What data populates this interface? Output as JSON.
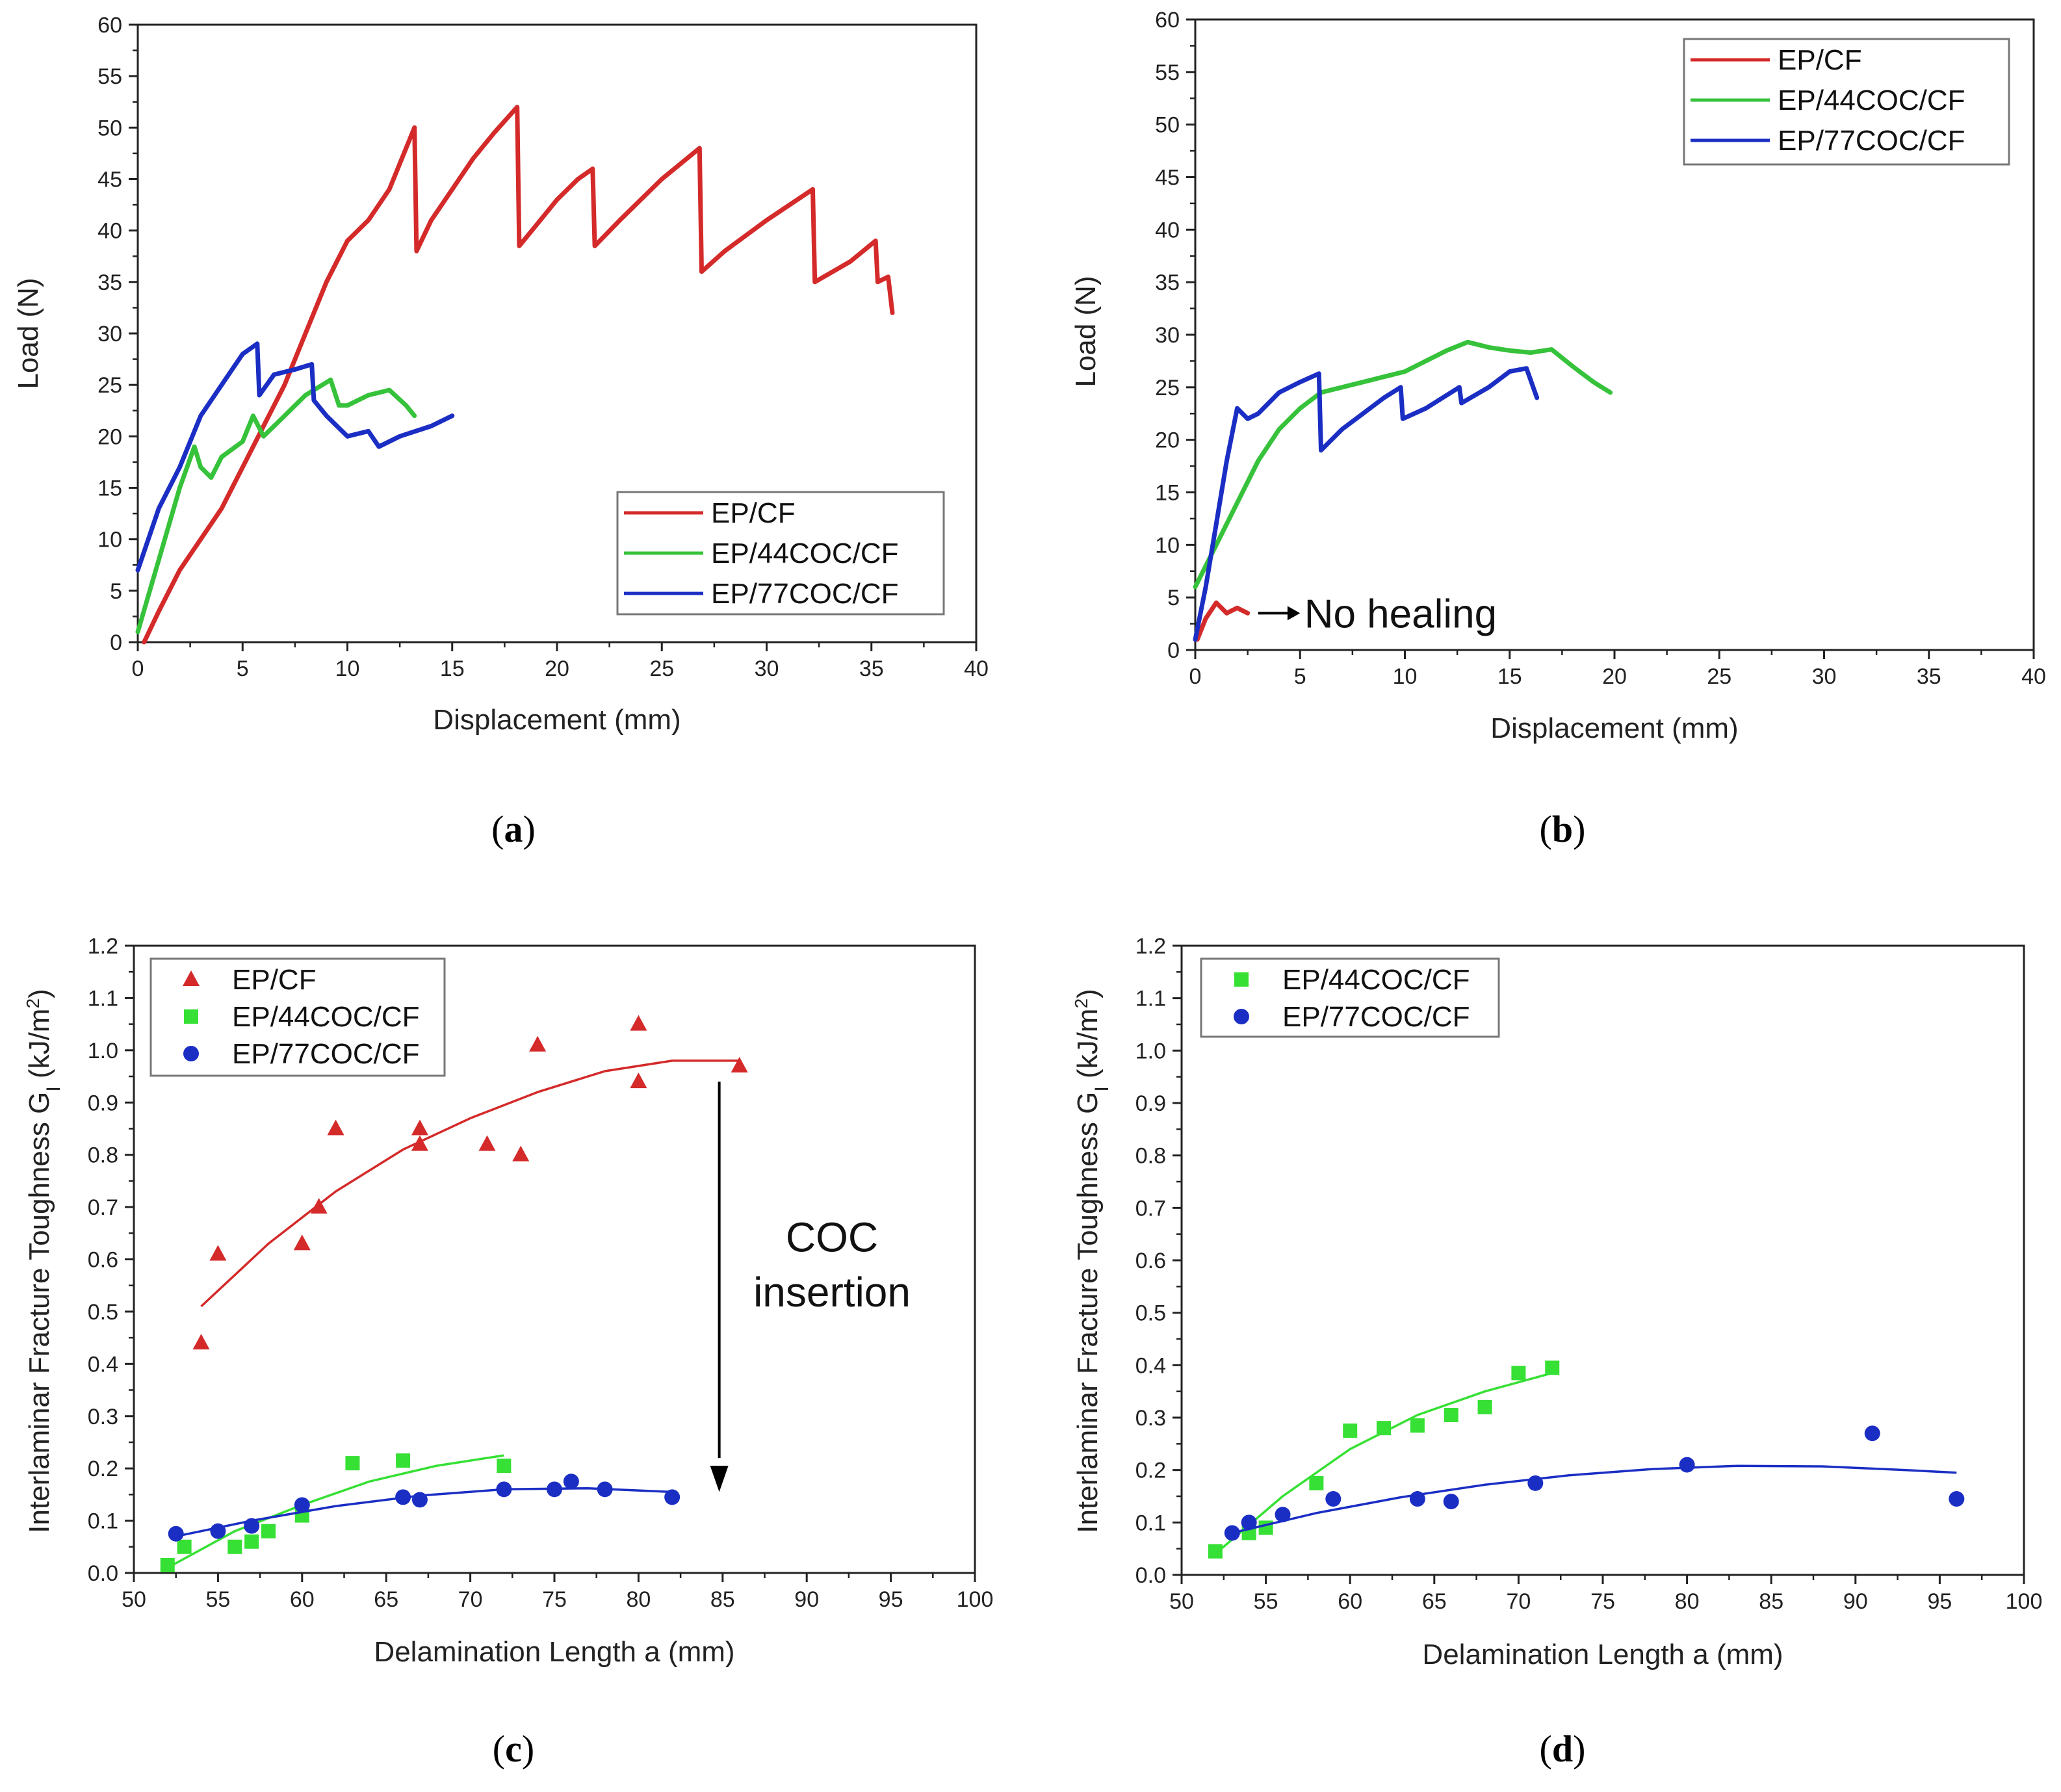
{
  "chart_data": [
    {
      "panel": "(a)",
      "panel_letter": "a",
      "type": "line",
      "xlabel": "Displacement (mm)",
      "ylabel": "Load (N)",
      "xlim": [
        0,
        40
      ],
      "ylim": [
        0,
        60
      ],
      "xticks": [
        0,
        5,
        10,
        15,
        20,
        25,
        30,
        35,
        40
      ],
      "yticks": [
        0,
        5,
        10,
        15,
        20,
        25,
        30,
        35,
        40,
        45,
        50,
        55,
        60
      ],
      "legend_position": "bottom-right",
      "series": [
        {
          "name": "EP/CF",
          "color": "#d42a2a",
          "x": [
            0.3,
            1,
            2,
            3,
            4,
            5,
            6,
            7,
            8,
            9,
            10,
            10.5,
            11,
            12,
            13.2,
            13.3,
            14,
            15,
            16,
            17,
            18.1,
            18.2,
            19,
            20,
            21,
            21.7,
            21.8,
            23,
            25,
            26.8,
            26.9,
            28,
            30,
            32.2,
            32.3,
            34,
            35.2,
            35.3,
            35.8,
            36
          ],
          "y": [
            0,
            3,
            7,
            10,
            13,
            17,
            21,
            25,
            30,
            35,
            39,
            40,
            41,
            44,
            50,
            38,
            41,
            44,
            47,
            49.5,
            52,
            38.5,
            40.5,
            43,
            45,
            46,
            38.5,
            41,
            45,
            48,
            36,
            38,
            41,
            44,
            35,
            37,
            39,
            35,
            35.5,
            32
          ]
        },
        {
          "name": "EP/44COC/CF",
          "color": "#36c23a",
          "x": [
            0,
            1,
            2,
            2.7,
            3,
            3.5,
            4,
            5,
            5.5,
            6,
            7,
            8,
            9.2,
            9.6,
            10,
            11,
            12,
            12.8,
            13.2
          ],
          "y": [
            1,
            8,
            15,
            19,
            17,
            16,
            18,
            19.5,
            22,
            20,
            22,
            24,
            25.5,
            23,
            23,
            24,
            24.5,
            23,
            22
          ]
        },
        {
          "name": "EP/77COC/CF",
          "color": "#1b2ec4",
          "x": [
            0,
            1,
            2,
            3,
            4,
            5,
            5.7,
            5.8,
            6.5,
            7.5,
            8.3,
            8.4,
            9,
            10,
            11,
            11.5,
            12.5,
            14,
            15
          ],
          "y": [
            7,
            13,
            17,
            22,
            25,
            28,
            29,
            24,
            26,
            26.5,
            27,
            23.5,
            22,
            20,
            20.5,
            19,
            20,
            21,
            22
          ]
        }
      ]
    },
    {
      "panel": "(b)",
      "panel_letter": "b",
      "type": "line",
      "xlabel": "Displacement (mm)",
      "ylabel": "Load (N)",
      "xlim": [
        0,
        40
      ],
      "ylim": [
        0,
        60
      ],
      "xticks": [
        0,
        5,
        10,
        15,
        20,
        25,
        30,
        35,
        40
      ],
      "yticks": [
        0,
        5,
        10,
        15,
        20,
        25,
        30,
        35,
        40,
        45,
        50,
        55,
        60
      ],
      "legend_position": "top-right",
      "annotation": "No healing",
      "series": [
        {
          "name": "EP/CF",
          "color": "#d42a2a",
          "x": [
            0.1,
            0.5,
            1,
            1.5,
            2,
            2.5
          ],
          "y": [
            1,
            3,
            4.5,
            3.5,
            4,
            3.5
          ]
        },
        {
          "name": "EP/44COC/CF",
          "color": "#36c23a",
          "x": [
            0,
            0.5,
            1,
            2,
            3,
            4,
            5,
            6,
            7,
            8,
            9,
            10,
            11,
            12,
            13,
            14,
            15,
            16,
            17,
            18,
            19,
            19.8
          ],
          "y": [
            6,
            8,
            10,
            14,
            18,
            21,
            23,
            24.5,
            25,
            25.5,
            26,
            26.5,
            27.5,
            28.5,
            29.3,
            28.8,
            28.5,
            28.3,
            28.6,
            27,
            25.5,
            24.5
          ]
        },
        {
          "name": "EP/77COC/CF",
          "color": "#1b2ec4",
          "x": [
            0,
            0.5,
            1,
            1.5,
            2,
            2.5,
            3,
            4,
            5,
            5.9,
            6.0,
            7,
            8,
            9,
            9.8,
            9.9,
            11,
            12.6,
            12.7,
            14,
            15,
            15.8,
            16.3
          ],
          "y": [
            1,
            6,
            12,
            18,
            23,
            22,
            22.5,
            24.5,
            25.5,
            26.3,
            19,
            21,
            22.5,
            24,
            25,
            22,
            23,
            25,
            23.5,
            25,
            26.5,
            26.8,
            24
          ]
        }
      ]
    },
    {
      "panel": "(c)",
      "panel_letter": "c",
      "type": "scatter",
      "xlabel": "Delamination Length a (mm)",
      "ylabel": "Interlaminar Fracture Toughness G",
      "ylabel_sub": "I",
      "ylabel_unit": " (kJ/m",
      "ylabel_sup": "2",
      "ylabel_close": ")",
      "xlim": [
        50,
        100
      ],
      "ylim": [
        0,
        1.2
      ],
      "xticks": [
        50,
        55,
        60,
        65,
        70,
        75,
        80,
        85,
        90,
        95,
        100
      ],
      "yticks": [
        "0.0",
        "0.1",
        "0.2",
        "0.3",
        "0.4",
        "0.5",
        "0.6",
        "0.7",
        "0.8",
        "0.9",
        "1.0",
        "1.1",
        "1.2"
      ],
      "legend_position": "top-left",
      "annotation_line1": "COC",
      "annotation_line2": "insertion",
      "series": [
        {
          "name": "EP/CF",
          "marker": "triangle",
          "color": "#d42a2a",
          "x": [
            54,
            55,
            60,
            61,
            62,
            67,
            67,
            71,
            73,
            74,
            80,
            80,
            86
          ],
          "y": [
            0.44,
            0.61,
            0.63,
            0.7,
            0.85,
            0.85,
            0.82,
            0.82,
            0.8,
            1.01,
            1.05,
            0.94,
            0.97
          ],
          "fit": {
            "x": [
              54,
              58,
              62,
              66,
              70,
              74,
              78,
              82,
              86
            ],
            "y": [
              0.51,
              0.63,
              0.73,
              0.81,
              0.87,
              0.92,
              0.96,
              0.98,
              0.98
            ]
          }
        },
        {
          "name": "EP/44COC/CF",
          "marker": "square",
          "color": "#36e034",
          "x": [
            52,
            53,
            56,
            57,
            58,
            60,
            63,
            66,
            72
          ],
          "y": [
            0.015,
            0.05,
            0.05,
            0.06,
            0.08,
            0.11,
            0.21,
            0.215,
            0.205
          ],
          "fit": {
            "x": [
              52,
              56,
              60,
              64,
              68,
              72
            ],
            "y": [
              0.01,
              0.08,
              0.13,
              0.175,
              0.205,
              0.225
            ]
          }
        },
        {
          "name": "EP/77COC/CF",
          "marker": "circle",
          "color": "#1b2ec4",
          "x": [
            52.5,
            55,
            57,
            60,
            66,
            67,
            72,
            75,
            76,
            78,
            82
          ],
          "y": [
            0.075,
            0.08,
            0.09,
            0.13,
            0.145,
            0.14,
            0.16,
            0.16,
            0.175,
            0.16,
            0.145
          ],
          "fit": {
            "x": [
              52.5,
              57,
              62,
              67,
              72,
              77,
              82
            ],
            "y": [
              0.07,
              0.1,
              0.128,
              0.148,
              0.16,
              0.162,
              0.155
            ]
          }
        }
      ]
    },
    {
      "panel": "(d)",
      "panel_letter": "d",
      "type": "scatter",
      "xlabel": "Delamination Length a (mm)",
      "ylabel": "Interlaminar Fracture Toughness G",
      "ylabel_sub": "I",
      "ylabel_unit": " (kJ/m",
      "ylabel_sup": "2",
      "ylabel_close": ")",
      "xlim": [
        50,
        100
      ],
      "ylim": [
        0,
        1.2
      ],
      "xticks": [
        50,
        55,
        60,
        65,
        70,
        75,
        80,
        85,
        90,
        95,
        100
      ],
      "yticks": [
        "0.0",
        "0.1",
        "0.2",
        "0.3",
        "0.4",
        "0.5",
        "0.6",
        "0.7",
        "0.8",
        "0.9",
        "1.0",
        "1.1",
        "1.2"
      ],
      "legend_position": "top-left",
      "series": [
        {
          "name": "EP/44COC/CF",
          "marker": "square",
          "color": "#36e034",
          "x": [
            52,
            54,
            55,
            58,
            60,
            62,
            64,
            66,
            68,
            70,
            72
          ],
          "y": [
            0.045,
            0.08,
            0.09,
            0.175,
            0.275,
            0.28,
            0.285,
            0.305,
            0.32,
            0.385,
            0.395
          ],
          "fit": {
            "x": [
              52,
              56,
              60,
              64,
              68,
              72
            ],
            "y": [
              0.04,
              0.15,
              0.24,
              0.305,
              0.35,
              0.385
            ]
          }
        },
        {
          "name": "EP/77COC/CF",
          "marker": "circle",
          "color": "#1b2ec4",
          "x": [
            53,
            54,
            56,
            59,
            64,
            66,
            71,
            80,
            91,
            96
          ],
          "y": [
            0.08,
            0.1,
            0.115,
            0.145,
            0.145,
            0.14,
            0.175,
            0.21,
            0.27,
            0.145
          ],
          "fit": {
            "x": [
              53,
              58,
              63,
              68,
              73,
              78,
              83,
              88,
              93,
              96
            ],
            "y": [
              0.08,
              0.118,
              0.148,
              0.172,
              0.19,
              0.202,
              0.208,
              0.207,
              0.2,
              0.195
            ]
          }
        }
      ]
    }
  ]
}
